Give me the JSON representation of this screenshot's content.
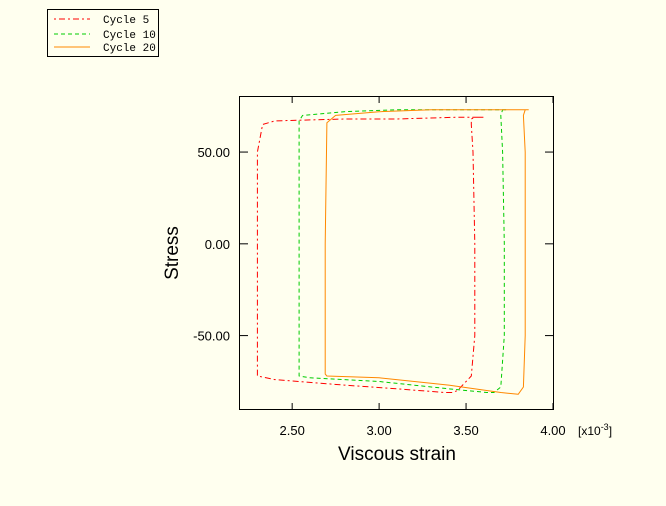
{
  "chart_data": {
    "type": "line",
    "xlabel": "Viscous strain",
    "ylabel": "Stress",
    "x_multiplier": {
      "prefix": "[x10",
      "exponent": "-3",
      "suffix": "]"
    },
    "xlim": [
      2.2,
      4.0
    ],
    "ylim": [
      -90,
      80
    ],
    "x_ticks": [
      {
        "value": 2.5,
        "label": "2.50"
      },
      {
        "value": 3.0,
        "label": "3.00"
      },
      {
        "value": 3.5,
        "label": "3.50"
      },
      {
        "value": 4.0,
        "label": "4.00"
      }
    ],
    "y_ticks": [
      {
        "value": 50,
        "label": "50.00"
      },
      {
        "value": 0,
        "label": "0.00"
      },
      {
        "value": -50,
        "label": "-50.00"
      }
    ],
    "legend_position": "top-left",
    "grid": false,
    "series": [
      {
        "name": "Cycle 5",
        "color": "#ff0000",
        "dash": "2,3,6,3",
        "x": [
          3.6,
          3.45,
          3.1,
          2.8,
          2.4,
          2.33,
          2.3,
          2.3,
          2.3,
          2.4,
          2.8,
          3.1,
          3.38,
          3.42,
          3.45,
          3.53,
          3.55,
          3.55,
          3.54,
          3.53,
          3.53,
          3.55,
          3.6
        ],
        "y": [
          69,
          69,
          68,
          68,
          67,
          65,
          50,
          0,
          -72,
          -74,
          -77,
          -79,
          -81,
          -81,
          -80,
          -72,
          -50,
          0,
          50,
          65,
          68,
          69,
          69
        ]
      },
      {
        "name": "Cycle 10",
        "color": "#00cc00",
        "dash": "4,3",
        "x": [
          3.73,
          3.5,
          3.1,
          2.8,
          2.56,
          2.54,
          2.54,
          2.54,
          2.6,
          3.0,
          3.4,
          3.62,
          3.66,
          3.7,
          3.72,
          3.72,
          3.71,
          3.7,
          3.71,
          3.73
        ],
        "y": [
          73,
          73,
          73,
          72,
          70,
          67,
          0,
          -72,
          -73,
          -75,
          -79,
          -81,
          -81,
          -78,
          -50,
          0,
          50,
          70,
          73,
          73
        ]
      },
      {
        "name": "Cycle 20",
        "color": "#ff8800",
        "dash": "",
        "x": [
          3.86,
          3.6,
          3.3,
          3.0,
          2.75,
          2.7,
          2.69,
          2.69,
          2.7,
          3.0,
          3.4,
          3.7,
          3.8,
          3.83,
          3.84,
          3.84,
          3.84,
          3.83,
          3.84,
          3.86
        ],
        "y": [
          73,
          73,
          73,
          72,
          70,
          66,
          0,
          -71,
          -72,
          -73,
          -77,
          -81,
          -82,
          -78,
          -50,
          0,
          50,
          70,
          73,
          73
        ]
      }
    ]
  }
}
